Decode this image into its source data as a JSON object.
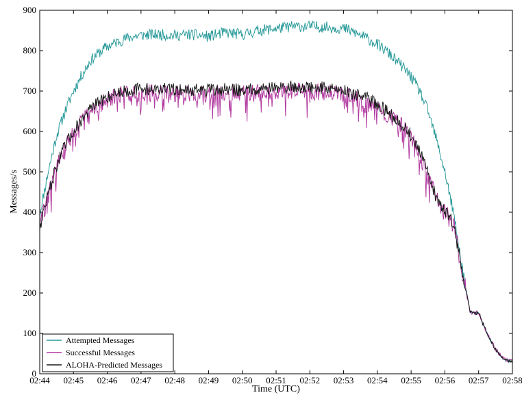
{
  "chart_data": {
    "type": "line",
    "title": "",
    "xlabel": "Time (UTC)",
    "ylabel": "Messages/s",
    "x_tick_labels": [
      "02:44",
      "02:45",
      "02:46",
      "02:47",
      "02:48",
      "02:49",
      "02:50",
      "02:51",
      "02:52",
      "02:53",
      "02:54",
      "02:55",
      "02:56",
      "02:57",
      "02:58"
    ],
    "x_tick_minutes": [
      0,
      1,
      2,
      3,
      4,
      5,
      6,
      7,
      8,
      9,
      10,
      11,
      12,
      13,
      14
    ],
    "y_ticks": [
      0,
      100,
      200,
      300,
      400,
      500,
      600,
      700,
      800,
      900
    ],
    "ylim": [
      0,
      900
    ],
    "xlim_minutes": [
      0,
      14
    ],
    "legend_position": "lower-left",
    "grid": false,
    "x_units": "minutes after 02:44 UTC",
    "series": [
      {
        "name": "Attempted Messages",
        "color": "#2a9a9a",
        "x": [
          0,
          0.25,
          0.5,
          0.75,
          1,
          1.25,
          1.5,
          1.75,
          2,
          2.25,
          2.5,
          2.75,
          3,
          3.5,
          4,
          4.5,
          5,
          5.5,
          6,
          6.5,
          7,
          7.5,
          8,
          8.5,
          9,
          9.25,
          9.5,
          9.75,
          10,
          10.25,
          10.5,
          10.75,
          11,
          11.25,
          11.5,
          11.75,
          12,
          12.25,
          12.5,
          12.75,
          13,
          13.25,
          13.5,
          13.75,
          14
        ],
        "values": [
          395,
          500,
          590,
          650,
          700,
          740,
          775,
          795,
          810,
          820,
          828,
          835,
          838,
          840,
          838,
          840,
          835,
          845,
          840,
          850,
          855,
          860,
          860,
          858,
          855,
          848,
          838,
          828,
          815,
          800,
          780,
          760,
          735,
          700,
          650,
          580,
          500,
          400,
          270,
          150,
          150,
          100,
          60,
          35,
          30
        ]
      },
      {
        "name": "Successful Messages",
        "color": "#b23aa0",
        "x": [
          0,
          0.25,
          0.5,
          0.75,
          1,
          1.25,
          1.5,
          1.75,
          2,
          2.25,
          2.5,
          2.75,
          3,
          3.5,
          4,
          4.5,
          5,
          5.5,
          6,
          6.5,
          7,
          7.5,
          8,
          8.5,
          9,
          9.25,
          9.5,
          9.75,
          10,
          10.25,
          10.5,
          10.75,
          11,
          11.25,
          11.5,
          11.75,
          12,
          12.25,
          12.5,
          12.75,
          13,
          13.25,
          13.5,
          13.75,
          14
        ],
        "values": [
          365,
          440,
          510,
          560,
          595,
          625,
          648,
          665,
          678,
          688,
          692,
          695,
          695,
          695,
          694,
          693,
          692,
          694,
          693,
          696,
          698,
          700,
          698,
          698,
          693,
          685,
          678,
          670,
          660,
          645,
          630,
          610,
          585,
          545,
          490,
          430,
          400,
          370,
          260,
          150,
          150,
          100,
          60,
          35,
          30
        ]
      },
      {
        "name": "ALOHA-Predicted Messages",
        "color": "#1a1a1a",
        "x": [
          0,
          0.25,
          0.5,
          0.75,
          1,
          1.25,
          1.5,
          1.75,
          2,
          2.25,
          2.5,
          2.75,
          3,
          3.5,
          4,
          4.5,
          5,
          5.5,
          6,
          6.5,
          7,
          7.5,
          8,
          8.5,
          9,
          9.25,
          9.5,
          9.75,
          10,
          10.25,
          10.5,
          10.75,
          11,
          11.25,
          11.5,
          11.75,
          12,
          12.25,
          12.5,
          12.75,
          13,
          13.25,
          13.5,
          13.75,
          14
        ],
        "values": [
          365,
          445,
          515,
          565,
          600,
          630,
          655,
          672,
          685,
          695,
          700,
          703,
          705,
          705,
          704,
          703,
          702,
          704,
          703,
          706,
          708,
          710,
          708,
          708,
          703,
          695,
          688,
          680,
          668,
          652,
          636,
          615,
          590,
          550,
          495,
          435,
          405,
          372,
          262,
          152,
          150,
          100,
          60,
          35,
          30
        ]
      }
    ]
  }
}
